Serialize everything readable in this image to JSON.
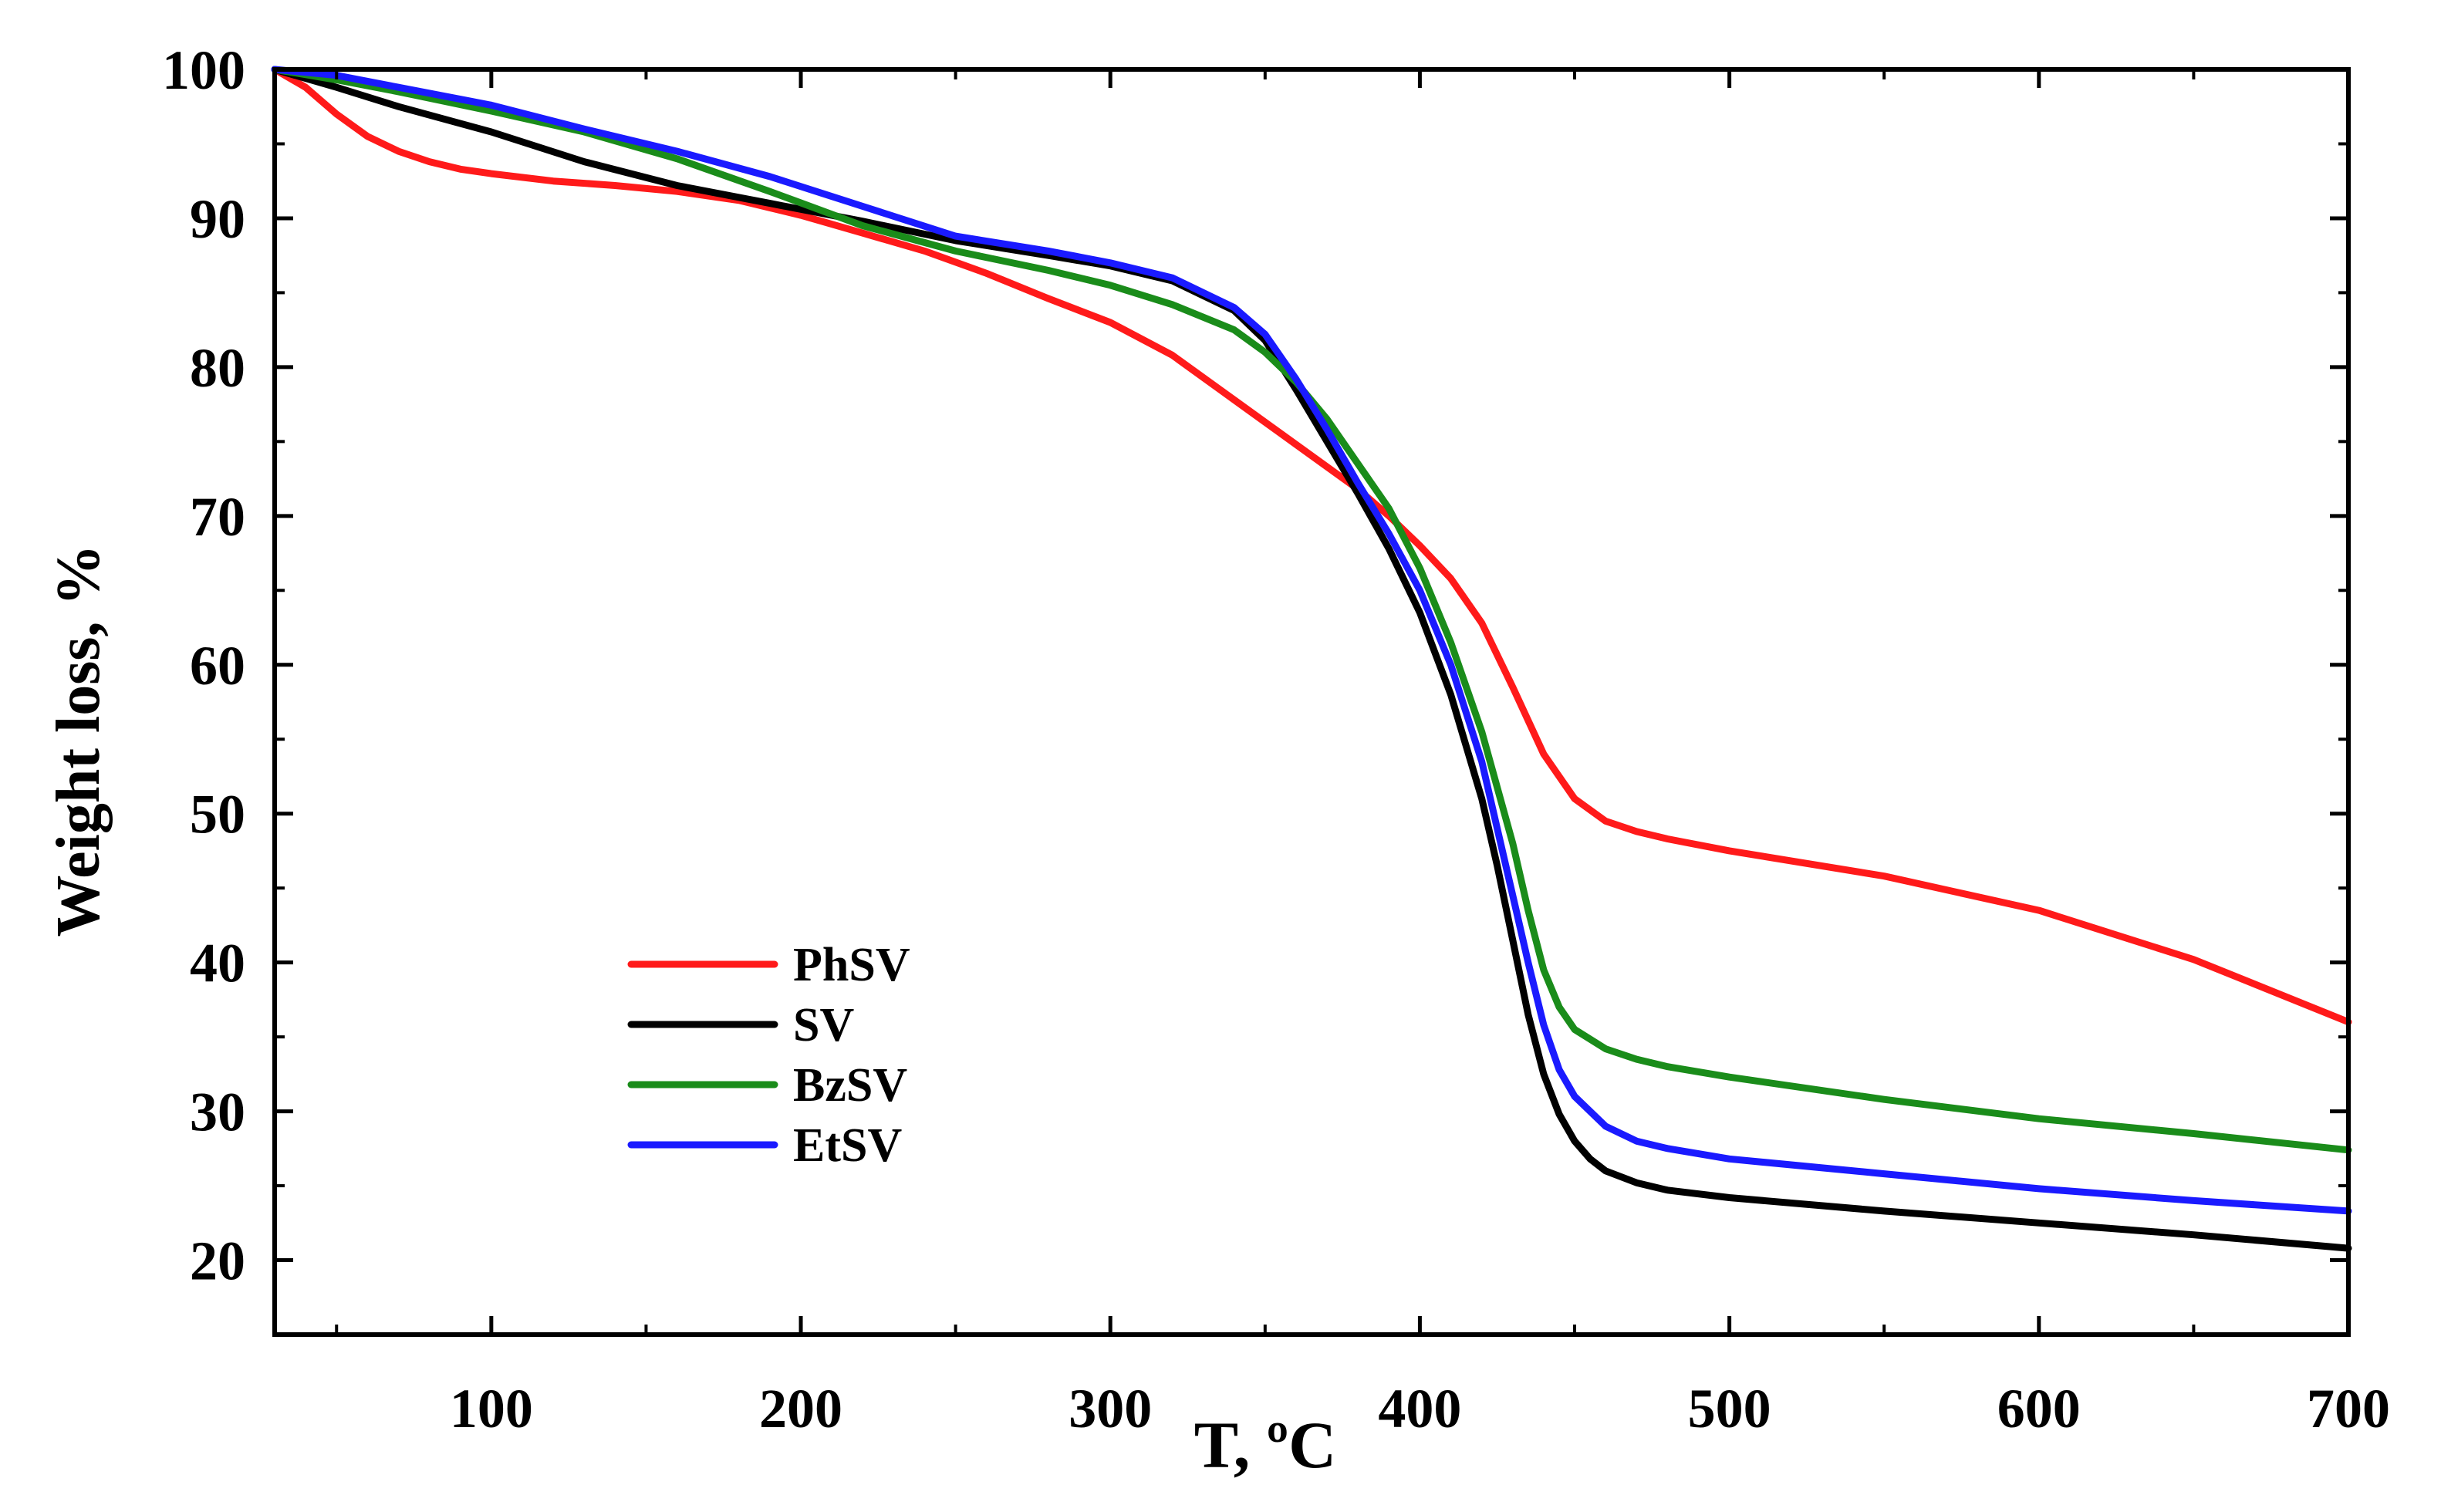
{
  "chart_data": {
    "type": "line",
    "title": "",
    "xlabel": "T, ºC",
    "ylabel": "Weight loss, %",
    "xlim": [
      30,
      700
    ],
    "ylim": [
      15,
      100
    ],
    "x_ticks": [
      100,
      200,
      300,
      400,
      500,
      600,
      700
    ],
    "x_tick_labels": [
      "100",
      "200",
      "300",
      "400",
      "500",
      "600",
      "700"
    ],
    "y_ticks": [
      20,
      30,
      40,
      50,
      60,
      70,
      80,
      90,
      100
    ],
    "y_tick_labels": [
      "20",
      "30",
      "40",
      "50",
      "60",
      "70",
      "80",
      "90",
      "100"
    ],
    "grid": false,
    "legend_position": "lower-left",
    "series": [
      {
        "name": "PhSV",
        "color": "#ff1a1a",
        "x": [
          30,
          40,
          50,
          60,
          70,
          80,
          90,
          100,
          120,
          140,
          160,
          180,
          200,
          220,
          240,
          260,
          280,
          300,
          320,
          340,
          360,
          380,
          390,
          400,
          410,
          420,
          430,
          440,
          450,
          460,
          470,
          480,
          500,
          550,
          600,
          650,
          700
        ],
        "y": [
          100,
          98.8,
          97.0,
          95.5,
          94.5,
          93.8,
          93.3,
          93.0,
          92.5,
          92.2,
          91.8,
          91.2,
          90.2,
          89.0,
          87.8,
          86.3,
          84.6,
          83.0,
          80.8,
          77.8,
          74.8,
          71.8,
          70.0,
          68.0,
          65.8,
          62.8,
          58.5,
          54.0,
          51.0,
          49.5,
          48.8,
          48.3,
          47.5,
          45.8,
          43.5,
          40.2,
          36.0
        ]
      },
      {
        "name": "SV",
        "color": "#000000",
        "x": [
          30,
          50,
          70,
          100,
          130,
          160,
          190,
          220,
          250,
          280,
          300,
          320,
          340,
          350,
          360,
          370,
          380,
          390,
          400,
          410,
          420,
          425,
          430,
          435,
          440,
          445,
          450,
          455,
          460,
          470,
          480,
          500,
          550,
          600,
          650,
          700
        ],
        "y": [
          100,
          98.8,
          97.5,
          95.8,
          93.8,
          92.2,
          91.0,
          89.8,
          88.5,
          87.5,
          86.8,
          85.8,
          83.8,
          81.8,
          78.5,
          75.0,
          71.5,
          67.8,
          63.5,
          58.0,
          51.0,
          46.5,
          41.5,
          36.5,
          32.5,
          29.8,
          28.0,
          26.8,
          26.0,
          25.2,
          24.7,
          24.2,
          23.3,
          22.5,
          21.7,
          20.8
        ]
      },
      {
        "name": "BzSV",
        "color": "#1a8c1a",
        "x": [
          30,
          50,
          70,
          100,
          130,
          160,
          190,
          220,
          250,
          280,
          300,
          320,
          340,
          350,
          360,
          370,
          380,
          390,
          400,
          410,
          420,
          430,
          435,
          440,
          445,
          450,
          460,
          470,
          480,
          500,
          550,
          600,
          650,
          700
        ],
        "y": [
          100,
          99.3,
          98.5,
          97.2,
          95.8,
          94.0,
          91.8,
          89.5,
          87.8,
          86.5,
          85.5,
          84.2,
          82.5,
          81.0,
          79.0,
          76.5,
          73.5,
          70.5,
          66.5,
          61.5,
          55.5,
          48.0,
          43.5,
          39.5,
          37.0,
          35.5,
          34.2,
          33.5,
          33.0,
          32.3,
          30.8,
          29.5,
          28.5,
          27.4
        ]
      },
      {
        "name": "EtSV",
        "color": "#1a1aff",
        "x": [
          30,
          50,
          70,
          100,
          130,
          160,
          190,
          220,
          250,
          280,
          300,
          320,
          340,
          350,
          360,
          370,
          380,
          390,
          400,
          410,
          420,
          425,
          430,
          435,
          440,
          445,
          450,
          460,
          470,
          480,
          500,
          550,
          600,
          650,
          700
        ],
        "y": [
          100,
          99.6,
          98.8,
          97.6,
          96.0,
          94.5,
          92.8,
          90.8,
          88.8,
          87.8,
          87.0,
          86.0,
          84.0,
          82.2,
          79.2,
          75.8,
          72.2,
          68.8,
          65.0,
          60.0,
          53.5,
          49.0,
          44.5,
          40.0,
          35.8,
          32.8,
          31.0,
          29.0,
          28.0,
          27.5,
          26.8,
          25.8,
          24.8,
          24.0,
          23.3
        ]
      }
    ]
  }
}
